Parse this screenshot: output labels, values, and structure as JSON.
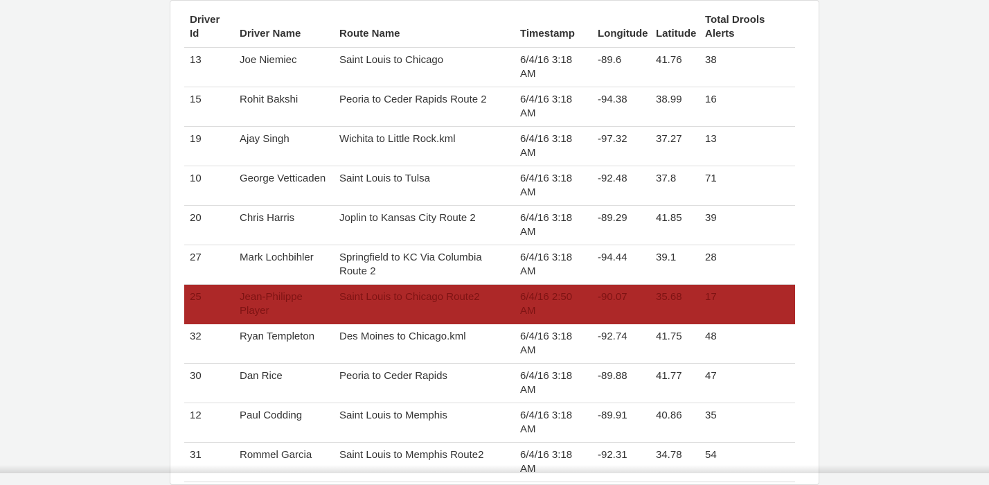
{
  "table": {
    "headers": {
      "driver_id": "Driver Id",
      "driver_name": "Driver Name",
      "route_name": "Route Name",
      "timestamp": "Timestamp",
      "longitude": "Longitude",
      "latitude": "Latitude",
      "total_drools_alerts": "Total Drools Alerts"
    },
    "rows": [
      {
        "driver_id": "13",
        "driver_name": "Joe Niemiec",
        "route_name": "Saint Louis to Chicago",
        "timestamp": "6/4/16 3:18 AM",
        "longitude": "-89.6",
        "latitude": "41.76",
        "alerts": "38"
      },
      {
        "driver_id": "15",
        "driver_name": "Rohit Bakshi",
        "route_name": "Peoria to Ceder Rapids Route 2",
        "timestamp": "6/4/16 3:18 AM",
        "longitude": "-94.38",
        "latitude": "38.99",
        "alerts": "16"
      },
      {
        "driver_id": "19",
        "driver_name": "Ajay Singh",
        "route_name": "Wichita to Little Rock.kml",
        "timestamp": "6/4/16 3:18 AM",
        "longitude": "-97.32",
        "latitude": "37.27",
        "alerts": "13"
      },
      {
        "driver_id": "10",
        "driver_name": "George Vetticaden",
        "route_name": "Saint Louis to Tulsa",
        "timestamp": "6/4/16 3:18 AM",
        "longitude": "-92.48",
        "latitude": "37.8",
        "alerts": "71"
      },
      {
        "driver_id": "20",
        "driver_name": "Chris Harris",
        "route_name": "Joplin to Kansas City Route 2",
        "timestamp": "6/4/16 3:18 AM",
        "longitude": "-89.29",
        "latitude": "41.85",
        "alerts": "39"
      },
      {
        "driver_id": "27",
        "driver_name": "Mark Lochbihler",
        "route_name": "Springfield to KC Via Columbia Route 2",
        "timestamp": "6/4/16 3:18 AM",
        "longitude": "-94.44",
        "latitude": "39.1",
        "alerts": "28"
      },
      {
        "driver_id": "25",
        "driver_name": "Jean-Philippe Player",
        "route_name": "Saint Louis to Chicago Route2",
        "timestamp": "6/4/16 2:50 AM",
        "longitude": "-90.07",
        "latitude": "35.68",
        "alerts": "17"
      },
      {
        "driver_id": "32",
        "driver_name": "Ryan Templeton",
        "route_name": "Des Moines to Chicago.kml",
        "timestamp": "6/4/16 3:18 AM",
        "longitude": "-92.74",
        "latitude": "41.75",
        "alerts": "48"
      },
      {
        "driver_id": "30",
        "driver_name": "Dan Rice",
        "route_name": "Peoria to Ceder Rapids",
        "timestamp": "6/4/16 3:18 AM",
        "longitude": "-89.88",
        "latitude": "41.77",
        "alerts": "47"
      },
      {
        "driver_id": "12",
        "driver_name": "Paul Codding",
        "route_name": "Saint Louis to Memphis",
        "timestamp": "6/4/16 3:18 AM",
        "longitude": "-89.91",
        "latitude": "40.86",
        "alerts": "35"
      },
      {
        "driver_id": "31",
        "driver_name": "Rommel Garcia",
        "route_name": "Saint Louis to Memphis Route2",
        "timestamp": "6/4/16 3:18 AM",
        "longitude": "-92.31",
        "latitude": "34.78",
        "alerts": "54"
      }
    ]
  },
  "colors": {
    "alert_row_background": "#ad2828",
    "alert_row_text": "#7e1313",
    "text": "#333333",
    "divider": "#dddddd"
  }
}
